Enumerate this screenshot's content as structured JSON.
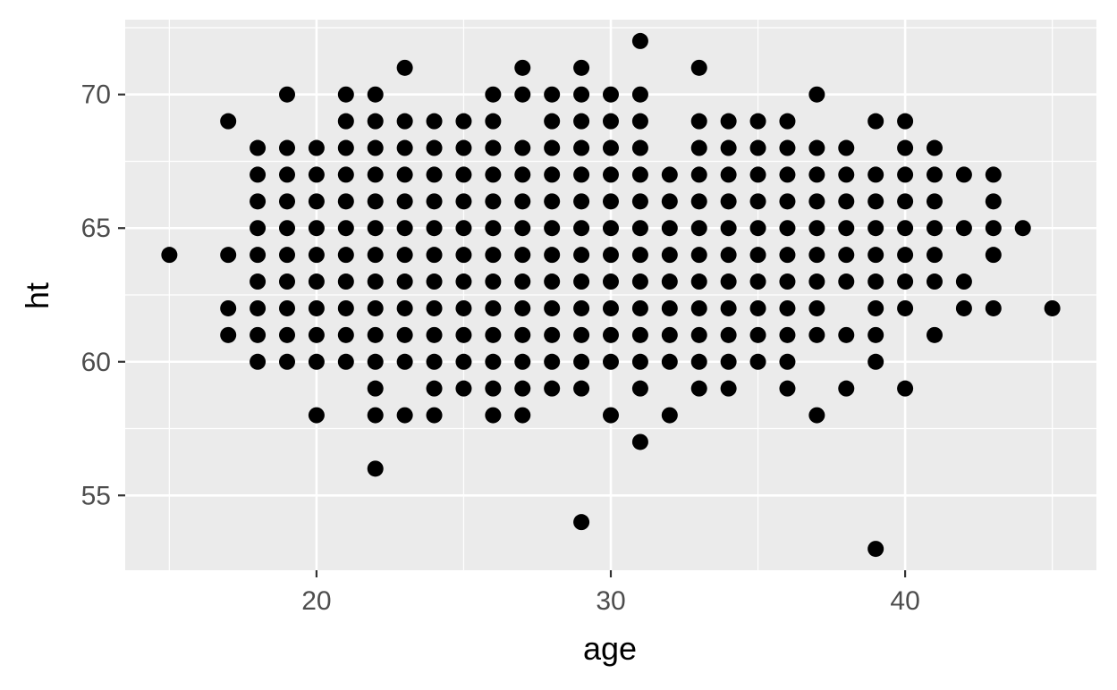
{
  "chart_data": {
    "type": "scatter",
    "title": "",
    "xlabel": "age",
    "ylabel": "ht",
    "xlim": [
      13.5,
      46.5
    ],
    "ylim": [
      52.2,
      72.8
    ],
    "x_ticks": [
      20,
      30,
      40
    ],
    "y_ticks": [
      55,
      60,
      65,
      70
    ],
    "x_minor": [
      15,
      25,
      35,
      45
    ],
    "y_minor": [
      57.5,
      62.5,
      67.5,
      72.5
    ],
    "grid": true,
    "colors": {
      "panel": "#ebebeb",
      "grid": "#ffffff",
      "point": "#000000",
      "tick": "#333333"
    },
    "points": [
      [
        15,
        64
      ],
      [
        17,
        61
      ],
      [
        17,
        62
      ],
      [
        17,
        64
      ],
      [
        17,
        69
      ],
      [
        18,
        60
      ],
      [
        18,
        61
      ],
      [
        18,
        62
      ],
      [
        18,
        63
      ],
      [
        18,
        64
      ],
      [
        18,
        65
      ],
      [
        18,
        66
      ],
      [
        18,
        67
      ],
      [
        18,
        68
      ],
      [
        19,
        60
      ],
      [
        19,
        61
      ],
      [
        19,
        62
      ],
      [
        19,
        63
      ],
      [
        19,
        64
      ],
      [
        19,
        65
      ],
      [
        19,
        66
      ],
      [
        19,
        67
      ],
      [
        19,
        68
      ],
      [
        19,
        70
      ],
      [
        20,
        58
      ],
      [
        20,
        60
      ],
      [
        20,
        61
      ],
      [
        20,
        62
      ],
      [
        20,
        63
      ],
      [
        20,
        64
      ],
      [
        20,
        65
      ],
      [
        20,
        66
      ],
      [
        20,
        67
      ],
      [
        20,
        68
      ],
      [
        21,
        60
      ],
      [
        21,
        61
      ],
      [
        21,
        62
      ],
      [
        21,
        63
      ],
      [
        21,
        64
      ],
      [
        21,
        65
      ],
      [
        21,
        66
      ],
      [
        21,
        67
      ],
      [
        21,
        68
      ],
      [
        21,
        69
      ],
      [
        21,
        70
      ],
      [
        22,
        56
      ],
      [
        22,
        58
      ],
      [
        22,
        59
      ],
      [
        22,
        60
      ],
      [
        22,
        61
      ],
      [
        22,
        62
      ],
      [
        22,
        63
      ],
      [
        22,
        64
      ],
      [
        22,
        65
      ],
      [
        22,
        66
      ],
      [
        22,
        67
      ],
      [
        22,
        68
      ],
      [
        22,
        69
      ],
      [
        22,
        70
      ],
      [
        23,
        58
      ],
      [
        23,
        60
      ],
      [
        23,
        61
      ],
      [
        23,
        62
      ],
      [
        23,
        63
      ],
      [
        23,
        64
      ],
      [
        23,
        65
      ],
      [
        23,
        66
      ],
      [
        23,
        67
      ],
      [
        23,
        68
      ],
      [
        23,
        69
      ],
      [
        23,
        71
      ],
      [
        24,
        58
      ],
      [
        24,
        59
      ],
      [
        24,
        60
      ],
      [
        24,
        61
      ],
      [
        24,
        62
      ],
      [
        24,
        63
      ],
      [
        24,
        64
      ],
      [
        24,
        65
      ],
      [
        24,
        66
      ],
      [
        24,
        67
      ],
      [
        24,
        68
      ],
      [
        24,
        69
      ],
      [
        25,
        59
      ],
      [
        25,
        60
      ],
      [
        25,
        61
      ],
      [
        25,
        62
      ],
      [
        25,
        63
      ],
      [
        25,
        64
      ],
      [
        25,
        65
      ],
      [
        25,
        66
      ],
      [
        25,
        67
      ],
      [
        25,
        68
      ],
      [
        25,
        69
      ],
      [
        26,
        58
      ],
      [
        26,
        59
      ],
      [
        26,
        60
      ],
      [
        26,
        61
      ],
      [
        26,
        62
      ],
      [
        26,
        63
      ],
      [
        26,
        64
      ],
      [
        26,
        65
      ],
      [
        26,
        66
      ],
      [
        26,
        67
      ],
      [
        26,
        68
      ],
      [
        26,
        69
      ],
      [
        26,
        70
      ],
      [
        27,
        58
      ],
      [
        27,
        59
      ],
      [
        27,
        60
      ],
      [
        27,
        61
      ],
      [
        27,
        62
      ],
      [
        27,
        63
      ],
      [
        27,
        64
      ],
      [
        27,
        65
      ],
      [
        27,
        66
      ],
      [
        27,
        67
      ],
      [
        27,
        68
      ],
      [
        27,
        70
      ],
      [
        27,
        71
      ],
      [
        28,
        59
      ],
      [
        28,
        60
      ],
      [
        28,
        61
      ],
      [
        28,
        62
      ],
      [
        28,
        63
      ],
      [
        28,
        64
      ],
      [
        28,
        65
      ],
      [
        28,
        66
      ],
      [
        28,
        67
      ],
      [
        28,
        68
      ],
      [
        28,
        69
      ],
      [
        28,
        70
      ],
      [
        29,
        54
      ],
      [
        29,
        59
      ],
      [
        29,
        60
      ],
      [
        29,
        61
      ],
      [
        29,
        62
      ],
      [
        29,
        63
      ],
      [
        29,
        64
      ],
      [
        29,
        65
      ],
      [
        29,
        66
      ],
      [
        29,
        67
      ],
      [
        29,
        68
      ],
      [
        29,
        69
      ],
      [
        29,
        70
      ],
      [
        29,
        71
      ],
      [
        30,
        58
      ],
      [
        30,
        60
      ],
      [
        30,
        61
      ],
      [
        30,
        62
      ],
      [
        30,
        63
      ],
      [
        30,
        64
      ],
      [
        30,
        65
      ],
      [
        30,
        66
      ],
      [
        30,
        67
      ],
      [
        30,
        68
      ],
      [
        30,
        69
      ],
      [
        30,
        70
      ],
      [
        31,
        57
      ],
      [
        31,
        59
      ],
      [
        31,
        60
      ],
      [
        31,
        61
      ],
      [
        31,
        62
      ],
      [
        31,
        63
      ],
      [
        31,
        64
      ],
      [
        31,
        65
      ],
      [
        31,
        66
      ],
      [
        31,
        67
      ],
      [
        31,
        68
      ],
      [
        31,
        69
      ],
      [
        31,
        70
      ],
      [
        31,
        72
      ],
      [
        32,
        58
      ],
      [
        32,
        60
      ],
      [
        32,
        61
      ],
      [
        32,
        62
      ],
      [
        32,
        63
      ],
      [
        32,
        64
      ],
      [
        32,
        65
      ],
      [
        32,
        66
      ],
      [
        32,
        67
      ],
      [
        33,
        59
      ],
      [
        33,
        60
      ],
      [
        33,
        61
      ],
      [
        33,
        62
      ],
      [
        33,
        63
      ],
      [
        33,
        64
      ],
      [
        33,
        65
      ],
      [
        33,
        66
      ],
      [
        33,
        67
      ],
      [
        33,
        68
      ],
      [
        33,
        69
      ],
      [
        33,
        71
      ],
      [
        34,
        59
      ],
      [
        34,
        60
      ],
      [
        34,
        61
      ],
      [
        34,
        62
      ],
      [
        34,
        63
      ],
      [
        34,
        64
      ],
      [
        34,
        65
      ],
      [
        34,
        66
      ],
      [
        34,
        67
      ],
      [
        34,
        68
      ],
      [
        34,
        69
      ],
      [
        35,
        60
      ],
      [
        35,
        61
      ],
      [
        35,
        62
      ],
      [
        35,
        63
      ],
      [
        35,
        64
      ],
      [
        35,
        65
      ],
      [
        35,
        66
      ],
      [
        35,
        67
      ],
      [
        35,
        68
      ],
      [
        35,
        69
      ],
      [
        36,
        59
      ],
      [
        36,
        60
      ],
      [
        36,
        61
      ],
      [
        36,
        62
      ],
      [
        36,
        63
      ],
      [
        36,
        64
      ],
      [
        36,
        65
      ],
      [
        36,
        66
      ],
      [
        36,
        67
      ],
      [
        36,
        68
      ],
      [
        36,
        69
      ],
      [
        37,
        58
      ],
      [
        37,
        61
      ],
      [
        37,
        62
      ],
      [
        37,
        63
      ],
      [
        37,
        64
      ],
      [
        37,
        65
      ],
      [
        37,
        66
      ],
      [
        37,
        67
      ],
      [
        37,
        68
      ],
      [
        37,
        70
      ],
      [
        38,
        59
      ],
      [
        38,
        61
      ],
      [
        38,
        63
      ],
      [
        38,
        64
      ],
      [
        38,
        65
      ],
      [
        38,
        66
      ],
      [
        38,
        67
      ],
      [
        38,
        68
      ],
      [
        39,
        53
      ],
      [
        39,
        60
      ],
      [
        39,
        61
      ],
      [
        39,
        62
      ],
      [
        39,
        63
      ],
      [
        39,
        64
      ],
      [
        39,
        65
      ],
      [
        39,
        66
      ],
      [
        39,
        67
      ],
      [
        39,
        69
      ],
      [
        40,
        59
      ],
      [
        40,
        62
      ],
      [
        40,
        63
      ],
      [
        40,
        64
      ],
      [
        40,
        65
      ],
      [
        40,
        66
      ],
      [
        40,
        67
      ],
      [
        40,
        68
      ],
      [
        40,
        69
      ],
      [
        41,
        61
      ],
      [
        41,
        63
      ],
      [
        41,
        64
      ],
      [
        41,
        65
      ],
      [
        41,
        66
      ],
      [
        41,
        67
      ],
      [
        41,
        68
      ],
      [
        42,
        62
      ],
      [
        42,
        63
      ],
      [
        42,
        65
      ],
      [
        42,
        67
      ],
      [
        43,
        62
      ],
      [
        43,
        64
      ],
      [
        43,
        65
      ],
      [
        43,
        66
      ],
      [
        43,
        67
      ],
      [
        44,
        65
      ],
      [
        45,
        62
      ]
    ]
  }
}
